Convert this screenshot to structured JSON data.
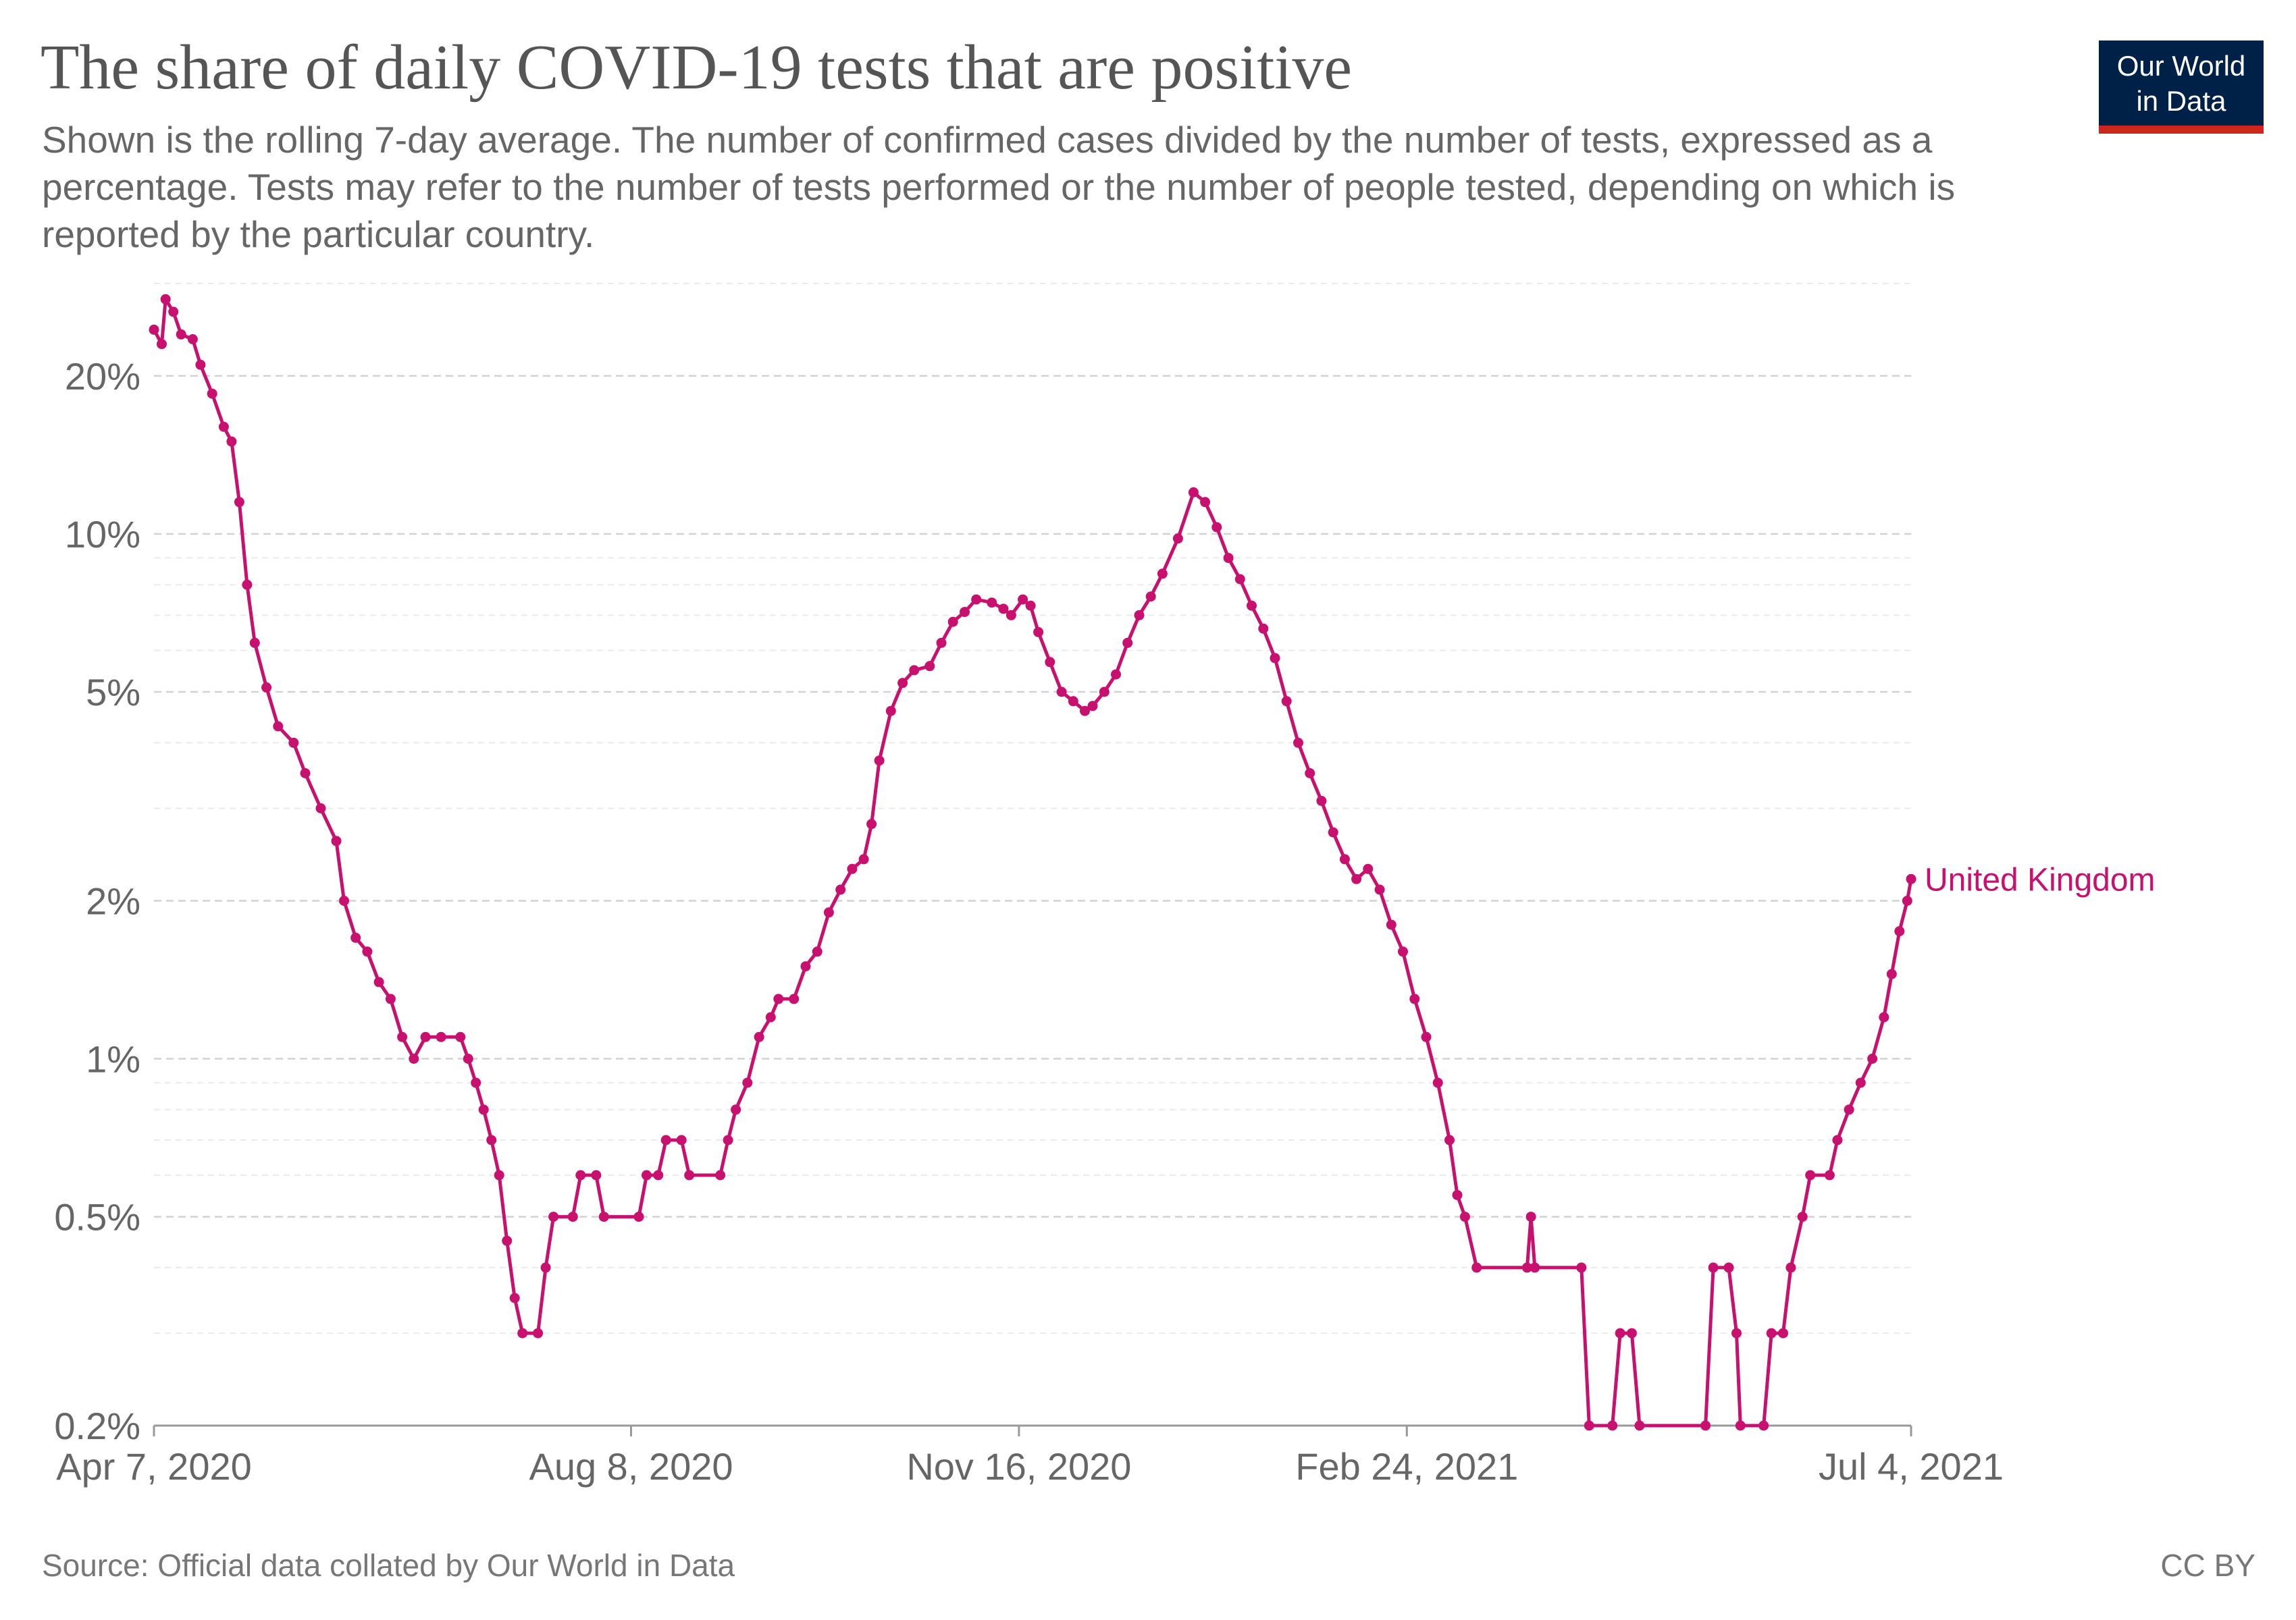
{
  "header": {
    "title": "The share of daily COVID-19 tests that are positive",
    "subtitle": "Shown is the rolling 7-day average. The number of confirmed cases divided by the number of tests, expressed as a percentage. Tests may refer to the number of tests performed or the number of people tested, depending on which is reported by the particular country."
  },
  "logo": {
    "line1": "Our World",
    "line2": "in Data",
    "colors": {
      "background": "#002147",
      "stripe": "#ce261e"
    }
  },
  "footer": {
    "source": "Source: Official data collated by Our World in Data",
    "license": "CC BY"
  },
  "chart_data": {
    "type": "line",
    "title": "The share of daily COVID-19 tests that are positive",
    "xlabel": "",
    "ylabel": "",
    "y_scale": "log",
    "ylim": [
      0.2,
      30
    ],
    "y_ticks": [
      {
        "value": 0.2,
        "label": "0.2%"
      },
      {
        "value": 0.5,
        "label": "0.5%"
      },
      {
        "value": 1,
        "label": "1%"
      },
      {
        "value": 2,
        "label": "2%"
      },
      {
        "value": 5,
        "label": "5%"
      },
      {
        "value": 10,
        "label": "10%"
      },
      {
        "value": 20,
        "label": "20%"
      }
    ],
    "y_minor_gridlines": [
      0.3,
      0.4,
      0.6,
      0.7,
      0.8,
      0.9,
      3,
      4,
      6,
      7,
      8,
      9,
      30
    ],
    "xlim": [
      "2020-04-07",
      "2021-07-04"
    ],
    "x_ticks": [
      {
        "date": "2020-04-07",
        "label": "Apr 7, 2020"
      },
      {
        "date": "2020-08-08",
        "label": "Aug 8, 2020"
      },
      {
        "date": "2020-11-16",
        "label": "Nov 16, 2020"
      },
      {
        "date": "2021-02-24",
        "label": "Feb 24, 2021"
      },
      {
        "date": "2021-07-04",
        "label": "Jul 4, 2021"
      }
    ],
    "grid": true,
    "legend": "end-of-line label",
    "series": [
      {
        "name": "United Kingdom",
        "color": "#c8106e",
        "points": [
          [
            "2020-04-07",
            24.5
          ],
          [
            "2020-04-09",
            23.0
          ],
          [
            "2020-04-10",
            28.0
          ],
          [
            "2020-04-12",
            26.5
          ],
          [
            "2020-04-14",
            24.0
          ],
          [
            "2020-04-17",
            23.5
          ],
          [
            "2020-04-19",
            21.0
          ],
          [
            "2020-04-22",
            18.5
          ],
          [
            "2020-04-25",
            16.0
          ],
          [
            "2020-04-27",
            15.0
          ],
          [
            "2020-04-29",
            11.5
          ],
          [
            "2020-05-01",
            8.0
          ],
          [
            "2020-05-03",
            6.2
          ],
          [
            "2020-05-06",
            5.1
          ],
          [
            "2020-05-09",
            4.3
          ],
          [
            "2020-05-13",
            4.0
          ],
          [
            "2020-05-16",
            3.5
          ],
          [
            "2020-05-20",
            3.0
          ],
          [
            "2020-05-24",
            2.6
          ],
          [
            "2020-05-26",
            2.0
          ],
          [
            "2020-05-29",
            1.7
          ],
          [
            "2020-06-01",
            1.6
          ],
          [
            "2020-06-04",
            1.4
          ],
          [
            "2020-06-07",
            1.3
          ],
          [
            "2020-06-10",
            1.1
          ],
          [
            "2020-06-13",
            1.0
          ],
          [
            "2020-06-16",
            1.1
          ],
          [
            "2020-06-20",
            1.1
          ],
          [
            "2020-06-25",
            1.1
          ],
          [
            "2020-06-27",
            1.0
          ],
          [
            "2020-06-29",
            0.9
          ],
          [
            "2020-07-01",
            0.8
          ],
          [
            "2020-07-03",
            0.7
          ],
          [
            "2020-07-05",
            0.6
          ],
          [
            "2020-07-07",
            0.45
          ],
          [
            "2020-07-09",
            0.35
          ],
          [
            "2020-07-11",
            0.3
          ],
          [
            "2020-07-15",
            0.3
          ],
          [
            "2020-07-17",
            0.4
          ],
          [
            "2020-07-19",
            0.5
          ],
          [
            "2020-07-24",
            0.5
          ],
          [
            "2020-07-26",
            0.6
          ],
          [
            "2020-07-30",
            0.6
          ],
          [
            "2020-08-01",
            0.5
          ],
          [
            "2020-08-10",
            0.5
          ],
          [
            "2020-08-12",
            0.6
          ],
          [
            "2020-08-15",
            0.6
          ],
          [
            "2020-08-17",
            0.7
          ],
          [
            "2020-08-21",
            0.7
          ],
          [
            "2020-08-23",
            0.6
          ],
          [
            "2020-08-31",
            0.6
          ],
          [
            "2020-09-02",
            0.7
          ],
          [
            "2020-09-04",
            0.8
          ],
          [
            "2020-09-07",
            0.9
          ],
          [
            "2020-09-10",
            1.1
          ],
          [
            "2020-09-13",
            1.2
          ],
          [
            "2020-09-15",
            1.3
          ],
          [
            "2020-09-19",
            1.3
          ],
          [
            "2020-09-22",
            1.5
          ],
          [
            "2020-09-25",
            1.6
          ],
          [
            "2020-09-28",
            1.9
          ],
          [
            "2020-10-01",
            2.1
          ],
          [
            "2020-10-04",
            2.3
          ],
          [
            "2020-10-07",
            2.4
          ],
          [
            "2020-10-09",
            2.8
          ],
          [
            "2020-10-11",
            3.7
          ],
          [
            "2020-10-14",
            4.6
          ],
          [
            "2020-10-17",
            5.2
          ],
          [
            "2020-10-20",
            5.5
          ],
          [
            "2020-10-24",
            5.6
          ],
          [
            "2020-10-27",
            6.2
          ],
          [
            "2020-10-30",
            6.8
          ],
          [
            "2020-11-02",
            7.1
          ],
          [
            "2020-11-05",
            7.5
          ],
          [
            "2020-11-09",
            7.4
          ],
          [
            "2020-11-12",
            7.2
          ],
          [
            "2020-11-14",
            7.0
          ],
          [
            "2020-11-17",
            7.5
          ],
          [
            "2020-11-19",
            7.3
          ],
          [
            "2020-11-21",
            6.5
          ],
          [
            "2020-11-24",
            5.7
          ],
          [
            "2020-11-27",
            5.0
          ],
          [
            "2020-11-30",
            4.8
          ],
          [
            "2020-12-03",
            4.6
          ],
          [
            "2020-12-05",
            4.7
          ],
          [
            "2020-12-08",
            5.0
          ],
          [
            "2020-12-11",
            5.4
          ],
          [
            "2020-12-14",
            6.2
          ],
          [
            "2020-12-17",
            7.0
          ],
          [
            "2020-12-20",
            7.6
          ],
          [
            "2020-12-23",
            8.4
          ],
          [
            "2020-12-27",
            9.8
          ],
          [
            "2020-12-31",
            12.0
          ],
          [
            "2021-01-03",
            11.5
          ],
          [
            "2021-01-06",
            10.3
          ],
          [
            "2021-01-09",
            9.0
          ],
          [
            "2021-01-12",
            8.2
          ],
          [
            "2021-01-15",
            7.3
          ],
          [
            "2021-01-18",
            6.6
          ],
          [
            "2021-01-21",
            5.8
          ],
          [
            "2021-01-24",
            4.8
          ],
          [
            "2021-01-27",
            4.0
          ],
          [
            "2021-01-30",
            3.5
          ],
          [
            "2021-02-02",
            3.1
          ],
          [
            "2021-02-05",
            2.7
          ],
          [
            "2021-02-08",
            2.4
          ],
          [
            "2021-02-11",
            2.2
          ],
          [
            "2021-02-14",
            2.3
          ],
          [
            "2021-02-17",
            2.1
          ],
          [
            "2021-02-20",
            1.8
          ],
          [
            "2021-02-23",
            1.6
          ],
          [
            "2021-02-26",
            1.3
          ],
          [
            "2021-03-01",
            1.1
          ],
          [
            "2021-03-04",
            0.9
          ],
          [
            "2021-03-07",
            0.7
          ],
          [
            "2021-03-09",
            0.55
          ],
          [
            "2021-03-11",
            0.5
          ],
          [
            "2021-03-14",
            0.4
          ],
          [
            "2021-03-27",
            0.4
          ],
          [
            "2021-03-28",
            0.5
          ],
          [
            "2021-03-29",
            0.4
          ],
          [
            "2021-04-10",
            0.4
          ],
          [
            "2021-04-12",
            0.2
          ],
          [
            "2021-04-18",
            0.2
          ],
          [
            "2021-04-20",
            0.3
          ],
          [
            "2021-04-23",
            0.3
          ],
          [
            "2021-04-25",
            0.2
          ],
          [
            "2021-05-12",
            0.2
          ],
          [
            "2021-05-14",
            0.4
          ],
          [
            "2021-05-18",
            0.4
          ],
          [
            "2021-05-20",
            0.3
          ],
          [
            "2021-05-21",
            0.2
          ],
          [
            "2021-05-27",
            0.2
          ],
          [
            "2021-05-29",
            0.3
          ],
          [
            "2021-06-01",
            0.3
          ],
          [
            "2021-06-03",
            0.4
          ],
          [
            "2021-06-06",
            0.5
          ],
          [
            "2021-06-08",
            0.6
          ],
          [
            "2021-06-13",
            0.6
          ],
          [
            "2021-06-15",
            0.7
          ],
          [
            "2021-06-18",
            0.8
          ],
          [
            "2021-06-21",
            0.9
          ],
          [
            "2021-06-24",
            1.0
          ],
          [
            "2021-06-27",
            1.2
          ],
          [
            "2021-06-29",
            1.45
          ],
          [
            "2021-07-01",
            1.75
          ],
          [
            "2021-07-03",
            2.0
          ],
          [
            "2021-07-04",
            2.2
          ]
        ]
      }
    ]
  }
}
